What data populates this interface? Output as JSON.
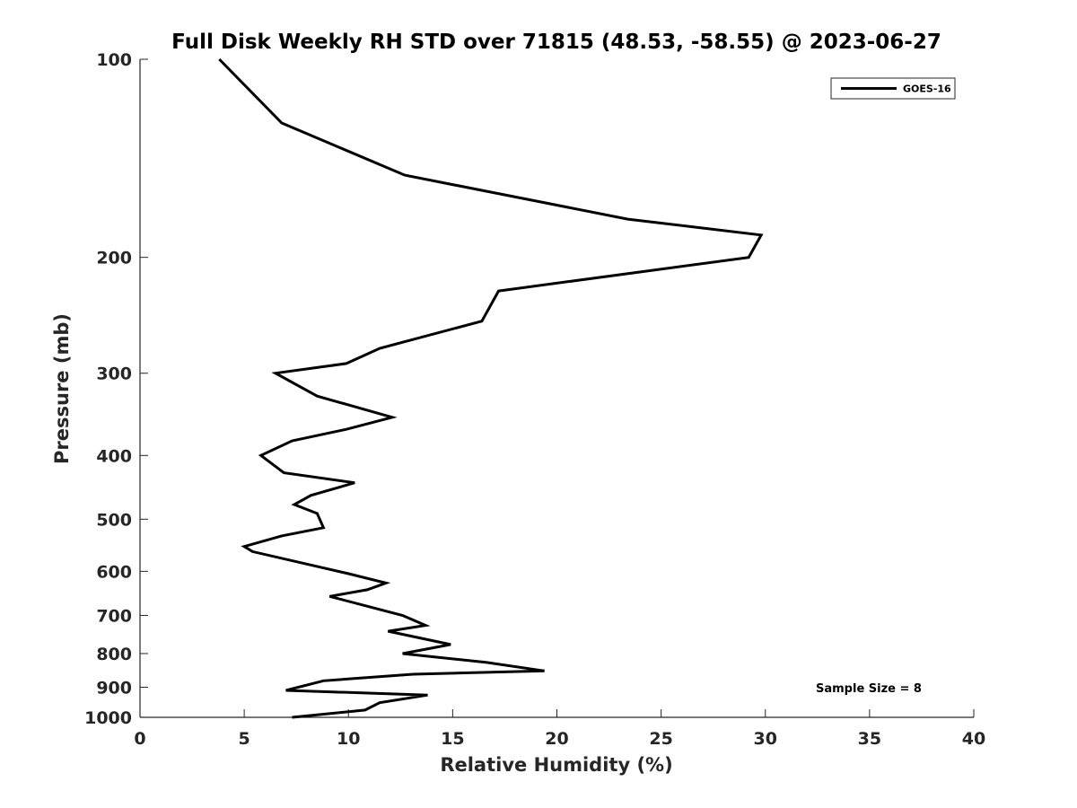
{
  "chart_data": {
    "type": "line",
    "title": "Full Disk Weekly RH STD over 71815 (48.53, -58.55) @ 2023-06-27",
    "xlabel": "Relative Humidity (%)",
    "ylabel": "Pressure (mb)",
    "xlim": [
      0,
      40
    ],
    "ylim": [
      1000,
      100
    ],
    "y_scale": "log",
    "y_reversed": true,
    "x_ticks": [
      0,
      5,
      10,
      15,
      20,
      25,
      30,
      35,
      40
    ],
    "x_tick_labels": [
      "0",
      "5",
      "10",
      "15",
      "20",
      "25",
      "30",
      "35",
      "40"
    ],
    "y_ticks": [
      100,
      200,
      300,
      400,
      500,
      600,
      700,
      800,
      900,
      1000
    ],
    "y_tick_labels": [
      "100",
      "200",
      "300",
      "400",
      "500",
      "600",
      "700",
      "800",
      "900",
      "1000"
    ],
    "grid": false,
    "legend": {
      "position": "top-right",
      "entries": [
        "GOES-16"
      ]
    },
    "annotation": "Sample Size = 8",
    "series": [
      {
        "name": "GOES-16",
        "color": "#000000",
        "points": [
          [
            3.8,
            100
          ],
          [
            6.8,
            125
          ],
          [
            12.7,
            150
          ],
          [
            23.4,
            175
          ],
          [
            29.8,
            185
          ],
          [
            29.2,
            200
          ],
          [
            17.2,
            225
          ],
          [
            16.4,
            250
          ],
          [
            11.5,
            275
          ],
          [
            9.9,
            290
          ],
          [
            6.5,
            300
          ],
          [
            8.5,
            325
          ],
          [
            12.1,
            350
          ],
          [
            9.9,
            365
          ],
          [
            7.3,
            380
          ],
          [
            5.8,
            400
          ],
          [
            6.9,
            425
          ],
          [
            10.3,
            440
          ],
          [
            8.2,
            460
          ],
          [
            7.4,
            475
          ],
          [
            8.5,
            490
          ],
          [
            8.8,
            515
          ],
          [
            6.8,
            530
          ],
          [
            5.0,
            550
          ],
          [
            5.4,
            560
          ],
          [
            10.0,
            605
          ],
          [
            11.8,
            625
          ],
          [
            10.9,
            640
          ],
          [
            9.1,
            655
          ],
          [
            12.6,
            700
          ],
          [
            13.7,
            725
          ],
          [
            11.9,
            740
          ],
          [
            14.9,
            775
          ],
          [
            12.6,
            800
          ],
          [
            16.6,
            825
          ],
          [
            19.4,
            850
          ],
          [
            13.1,
            860
          ],
          [
            8.8,
            880
          ],
          [
            7.0,
            910
          ],
          [
            13.8,
            925
          ],
          [
            11.5,
            950
          ],
          [
            10.8,
            975
          ],
          [
            7.3,
            1000
          ]
        ]
      }
    ]
  }
}
